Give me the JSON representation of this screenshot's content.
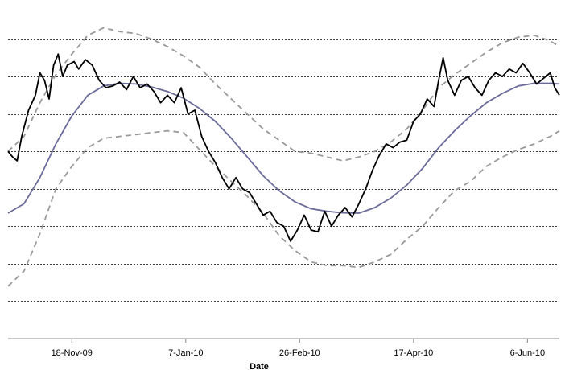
{
  "chart_data": {
    "type": "line",
    "title": "",
    "xlabel": "Date",
    "ylabel": "",
    "x_ticks": [
      {
        "label": "18-Nov-09",
        "date": "2009-11-18"
      },
      {
        "label": "7-Jan-10",
        "date": "2010-01-07"
      },
      {
        "label": "26-Feb-10",
        "date": "2010-02-26"
      },
      {
        "label": "17-Apr-10",
        "date": "2010-04-17"
      },
      {
        "label": "6-Jun-10",
        "date": "2010-06-06"
      }
    ],
    "x_range": [
      "2009-10-21",
      "2010-06-20"
    ],
    "y_range": [
      0,
      9
    ],
    "y_gridlines": [
      1,
      2,
      3,
      4,
      5,
      6,
      7,
      8
    ],
    "grid": "horizontal-dotted",
    "legend": "none",
    "series": [
      {
        "style": "price",
        "color": "#000000",
        "dash": "",
        "width": 1.8,
        "points": [
          [
            "2009-10-21",
            5.0
          ],
          [
            "2009-10-23",
            4.85
          ],
          [
            "2009-10-25",
            4.75
          ],
          [
            "2009-10-27",
            5.4
          ],
          [
            "2009-10-30",
            6.1
          ],
          [
            "2009-11-02",
            6.5
          ],
          [
            "2009-11-04",
            7.1
          ],
          [
            "2009-11-06",
            6.9
          ],
          [
            "2009-11-08",
            6.4
          ],
          [
            "2009-11-10",
            7.3
          ],
          [
            "2009-11-12",
            7.6
          ],
          [
            "2009-11-14",
            7.0
          ],
          [
            "2009-11-16",
            7.3
          ],
          [
            "2009-11-19",
            7.4
          ],
          [
            "2009-11-21",
            7.2
          ],
          [
            "2009-11-24",
            7.45
          ],
          [
            "2009-11-27",
            7.3
          ],
          [
            "2009-11-30",
            6.9
          ],
          [
            "2009-12-03",
            6.7
          ],
          [
            "2009-12-06",
            6.75
          ],
          [
            "2009-12-09",
            6.85
          ],
          [
            "2009-12-12",
            6.65
          ],
          [
            "2009-12-15",
            7.0
          ],
          [
            "2009-12-18",
            6.7
          ],
          [
            "2009-12-21",
            6.8
          ],
          [
            "2009-12-24",
            6.6
          ],
          [
            "2009-12-27",
            6.3
          ],
          [
            "2009-12-30",
            6.5
          ],
          [
            "2010-01-02",
            6.3
          ],
          [
            "2010-01-05",
            6.7
          ],
          [
            "2010-01-08",
            6.0
          ],
          [
            "2010-01-11",
            6.1
          ],
          [
            "2010-01-14",
            5.4
          ],
          [
            "2010-01-17",
            5.0
          ],
          [
            "2010-01-20",
            4.7
          ],
          [
            "2010-01-23",
            4.3
          ],
          [
            "2010-01-26",
            4.0
          ],
          [
            "2010-01-29",
            4.3
          ],
          [
            "2010-02-01",
            4.0
          ],
          [
            "2010-02-04",
            3.9
          ],
          [
            "2010-02-07",
            3.6
          ],
          [
            "2010-02-10",
            3.3
          ],
          [
            "2010-02-13",
            3.4
          ],
          [
            "2010-02-16",
            3.1
          ],
          [
            "2010-02-19",
            3.0
          ],
          [
            "2010-02-22",
            2.6
          ],
          [
            "2010-02-25",
            2.9
          ],
          [
            "2010-02-28",
            3.3
          ],
          [
            "2010-03-03",
            2.9
          ],
          [
            "2010-03-06",
            2.85
          ],
          [
            "2010-03-09",
            3.4
          ],
          [
            "2010-03-12",
            3.0
          ],
          [
            "2010-03-15",
            3.3
          ],
          [
            "2010-03-18",
            3.5
          ],
          [
            "2010-03-21",
            3.25
          ],
          [
            "2010-03-24",
            3.6
          ],
          [
            "2010-03-27",
            4.0
          ],
          [
            "2010-03-30",
            4.5
          ],
          [
            "2010-04-02",
            4.9
          ],
          [
            "2010-04-05",
            5.2
          ],
          [
            "2010-04-08",
            5.1
          ],
          [
            "2010-04-11",
            5.25
          ],
          [
            "2010-04-14",
            5.3
          ],
          [
            "2010-04-17",
            5.8
          ],
          [
            "2010-04-20",
            6.0
          ],
          [
            "2010-04-23",
            6.4
          ],
          [
            "2010-04-26",
            6.2
          ],
          [
            "2010-04-28",
            6.9
          ],
          [
            "2010-04-30",
            7.5
          ],
          [
            "2010-05-02",
            6.9
          ],
          [
            "2010-05-05",
            6.5
          ],
          [
            "2010-05-08",
            6.9
          ],
          [
            "2010-05-11",
            7.0
          ],
          [
            "2010-05-14",
            6.7
          ],
          [
            "2010-05-17",
            6.5
          ],
          [
            "2010-05-20",
            6.9
          ],
          [
            "2010-05-23",
            7.1
          ],
          [
            "2010-05-26",
            7.0
          ],
          [
            "2010-05-29",
            7.2
          ],
          [
            "2010-06-01",
            7.1
          ],
          [
            "2010-06-04",
            7.35
          ],
          [
            "2010-06-07",
            7.1
          ],
          [
            "2010-06-10",
            6.8
          ],
          [
            "2010-06-13",
            6.95
          ],
          [
            "2010-06-16",
            7.1
          ],
          [
            "2010-06-18",
            6.7
          ],
          [
            "2010-06-20",
            6.5
          ]
        ]
      },
      {
        "style": "moving-average",
        "color": "#6b6b9a",
        "dash": "",
        "width": 1.8,
        "points": [
          [
            "2009-10-21",
            3.35
          ],
          [
            "2009-10-28",
            3.6
          ],
          [
            "2009-11-04",
            4.3
          ],
          [
            "2009-11-11",
            5.2
          ],
          [
            "2009-11-18",
            5.95
          ],
          [
            "2009-11-25",
            6.5
          ],
          [
            "2009-12-02",
            6.75
          ],
          [
            "2009-12-09",
            6.82
          ],
          [
            "2009-12-16",
            6.8
          ],
          [
            "2009-12-23",
            6.72
          ],
          [
            "2009-12-30",
            6.6
          ],
          [
            "2010-01-06",
            6.42
          ],
          [
            "2010-01-13",
            6.15
          ],
          [
            "2010-01-20",
            5.8
          ],
          [
            "2010-01-27",
            5.35
          ],
          [
            "2010-02-03",
            4.85
          ],
          [
            "2010-02-10",
            4.35
          ],
          [
            "2010-02-17",
            3.95
          ],
          [
            "2010-02-24",
            3.65
          ],
          [
            "2010-03-03",
            3.47
          ],
          [
            "2010-03-10",
            3.4
          ],
          [
            "2010-03-17",
            3.36
          ],
          [
            "2010-03-24",
            3.35
          ],
          [
            "2010-03-31",
            3.5
          ],
          [
            "2010-04-07",
            3.75
          ],
          [
            "2010-04-14",
            4.1
          ],
          [
            "2010-04-21",
            4.55
          ],
          [
            "2010-04-28",
            5.1
          ],
          [
            "2010-05-05",
            5.55
          ],
          [
            "2010-05-12",
            5.95
          ],
          [
            "2010-05-19",
            6.3
          ],
          [
            "2010-05-26",
            6.55
          ],
          [
            "2010-06-02",
            6.75
          ],
          [
            "2010-06-09",
            6.82
          ],
          [
            "2010-06-16",
            6.82
          ],
          [
            "2010-06-20",
            6.8
          ]
        ]
      },
      {
        "style": "upper-band",
        "color": "#999999",
        "dash": "7,5",
        "width": 1.8,
        "points": [
          [
            "2009-10-21",
            5.0
          ],
          [
            "2009-10-28",
            5.4
          ],
          [
            "2009-11-04",
            6.3
          ],
          [
            "2009-11-11",
            7.05
          ],
          [
            "2009-11-18",
            7.6
          ],
          [
            "2009-11-25",
            8.1
          ],
          [
            "2009-12-02",
            8.3
          ],
          [
            "2009-12-09",
            8.2
          ],
          [
            "2009-12-16",
            8.15
          ],
          [
            "2009-12-23",
            8.0
          ],
          [
            "2009-12-30",
            7.8
          ],
          [
            "2010-01-06",
            7.55
          ],
          [
            "2010-01-13",
            7.25
          ],
          [
            "2010-01-20",
            6.8
          ],
          [
            "2010-01-27",
            6.4
          ],
          [
            "2010-02-03",
            6.0
          ],
          [
            "2010-02-10",
            5.6
          ],
          [
            "2010-02-17",
            5.3
          ],
          [
            "2010-02-24",
            5.0
          ],
          [
            "2010-03-03",
            4.95
          ],
          [
            "2010-03-10",
            4.85
          ],
          [
            "2010-03-17",
            4.75
          ],
          [
            "2010-03-24",
            4.85
          ],
          [
            "2010-03-31",
            5.0
          ],
          [
            "2010-04-07",
            5.25
          ],
          [
            "2010-04-14",
            5.6
          ],
          [
            "2010-04-21",
            6.1
          ],
          [
            "2010-04-28",
            6.7
          ],
          [
            "2010-05-05",
            7.05
          ],
          [
            "2010-05-12",
            7.35
          ],
          [
            "2010-05-19",
            7.65
          ],
          [
            "2010-05-26",
            7.9
          ],
          [
            "2010-06-02",
            8.05
          ],
          [
            "2010-06-09",
            8.1
          ],
          [
            "2010-06-16",
            7.95
          ],
          [
            "2010-06-20",
            7.8
          ]
        ]
      },
      {
        "style": "lower-band",
        "color": "#999999",
        "dash": "7,5",
        "width": 1.8,
        "points": [
          [
            "2009-10-21",
            1.4
          ],
          [
            "2009-10-28",
            1.8
          ],
          [
            "2009-11-04",
            2.8
          ],
          [
            "2009-11-11",
            4.0
          ],
          [
            "2009-11-18",
            4.6
          ],
          [
            "2009-11-25",
            5.1
          ],
          [
            "2009-12-02",
            5.35
          ],
          [
            "2009-12-09",
            5.4
          ],
          [
            "2009-12-16",
            5.45
          ],
          [
            "2009-12-23",
            5.5
          ],
          [
            "2009-12-30",
            5.55
          ],
          [
            "2010-01-06",
            5.5
          ],
          [
            "2010-01-13",
            5.05
          ],
          [
            "2010-01-20",
            4.6
          ],
          [
            "2010-01-27",
            4.2
          ],
          [
            "2010-02-03",
            3.8
          ],
          [
            "2010-02-10",
            3.35
          ],
          [
            "2010-02-17",
            2.75
          ],
          [
            "2010-02-24",
            2.35
          ],
          [
            "2010-03-03",
            2.05
          ],
          [
            "2010-03-10",
            1.95
          ],
          [
            "2010-03-17",
            1.95
          ],
          [
            "2010-03-24",
            1.9
          ],
          [
            "2010-03-31",
            2.05
          ],
          [
            "2010-04-07",
            2.25
          ],
          [
            "2010-04-14",
            2.65
          ],
          [
            "2010-04-21",
            3.0
          ],
          [
            "2010-04-28",
            3.5
          ],
          [
            "2010-05-05",
            3.95
          ],
          [
            "2010-05-12",
            4.2
          ],
          [
            "2010-05-19",
            4.6
          ],
          [
            "2010-05-26",
            4.85
          ],
          [
            "2010-06-02",
            5.05
          ],
          [
            "2010-06-09",
            5.2
          ],
          [
            "2010-06-16",
            5.4
          ],
          [
            "2010-06-20",
            5.55
          ]
        ]
      }
    ]
  }
}
